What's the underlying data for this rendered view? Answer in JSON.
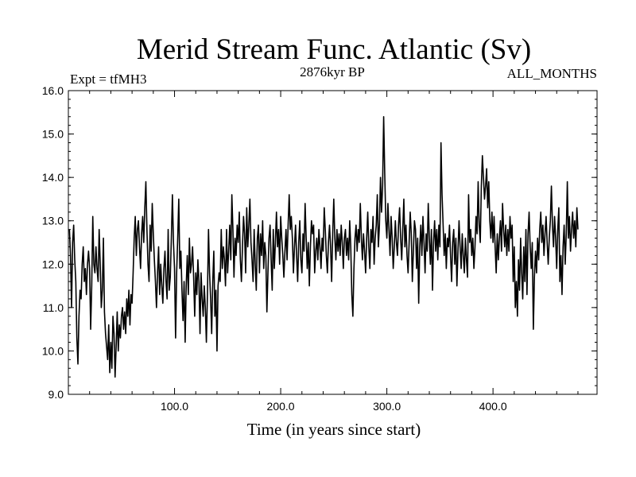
{
  "chart_data": {
    "type": "line",
    "title": "Merid Stream Func. Atlantic (Sv)",
    "subtitle_left": "Expt = tfMH3",
    "subtitle_center": "2876kyr BP",
    "subtitle_right": "ALL_MONTHS",
    "xlabel": "Time (in years since start)",
    "ylabel": "",
    "xlim": [
      0,
      498
    ],
    "ylim": [
      9.0,
      16.0
    ],
    "x_ticks": [
      100,
      200,
      300,
      400
    ],
    "x_tick_labels": [
      "100.0",
      "200.0",
      "300.0",
      "400.0"
    ],
    "y_ticks": [
      9,
      10,
      11,
      12,
      13,
      14,
      15,
      16
    ],
    "y_tick_labels": [
      "9.0",
      "10.0",
      "11.0",
      "12.0",
      "13.0",
      "14.0",
      "15.0",
      "16.0"
    ],
    "grid": false,
    "series": [
      {
        "name": "Merid Stream Func. Atlantic",
        "x_start": 1,
        "x_step": 1,
        "values": [
          12.8,
          12.2,
          11.0,
          12.5,
          12.9,
          12.1,
          11.6,
          10.3,
          9.7,
          10.8,
          11.4,
          11.2,
          12.0,
          12.4,
          11.6,
          11.9,
          11.3,
          12.0,
          12.3,
          11.9,
          10.5,
          11.5,
          13.1,
          12.0,
          11.8,
          12.4,
          11.9,
          11.6,
          12.8,
          12.0,
          11.0,
          11.4,
          12.6,
          10.9,
          10.4,
          10.1,
          9.8,
          10.6,
          9.5,
          10.2,
          9.6,
          10.8,
          10.4,
          9.4,
          10.1,
          10.9,
          10.0,
          10.6,
          10.3,
          10.8,
          11.0,
          10.5,
          10.9,
          10.4,
          11.2,
          10.8,
          11.4,
          10.6,
          11.3,
          11.1,
          11.8,
          12.6,
          13.1,
          12.2,
          12.8,
          13.0,
          12.4,
          11.9,
          12.7,
          13.1,
          12.5,
          13.3,
          13.9,
          12.8,
          12.0,
          11.6,
          12.9,
          12.3,
          13.4,
          12.7,
          12.1,
          11.6,
          11.0,
          11.8,
          12.4,
          11.3,
          12.0,
          11.5,
          11.1,
          11.9,
          12.3,
          11.6,
          11.2,
          12.8,
          11.4,
          11.7,
          12.6,
          13.6,
          12.5,
          11.9,
          10.3,
          11.8,
          12.6,
          13.5,
          11.9,
          12.3,
          11.4,
          10.7,
          11.6,
          10.2,
          11.5,
          12.2,
          11.3,
          12.6,
          11.8,
          12.0,
          12.4,
          11.7,
          10.8,
          11.8,
          11.3,
          12.1,
          11.6,
          10.4,
          11.8,
          11.2,
          10.8,
          11.5,
          11.0,
          10.2,
          11.3,
          12.8,
          11.8,
          11.2,
          10.4,
          11.6,
          12.3,
          10.8,
          11.4,
          10.0,
          11.5,
          11.8,
          11.6,
          12.8,
          11.9,
          12.4,
          12.1,
          11.5,
          12.8,
          11.8,
          12.3,
          12.9,
          12.1,
          13.6,
          12.8,
          11.7,
          12.6,
          12.2,
          12.9,
          12.5,
          13.2,
          12.1,
          11.6,
          12.4,
          13.1,
          12.7,
          11.8,
          13.3,
          12.4,
          12.9,
          13.5,
          12.5,
          12.1,
          11.6,
          12.8,
          12.0,
          11.4,
          12.6,
          12.9,
          11.8,
          12.7,
          12.2,
          13.0,
          11.9,
          12.5,
          12.2,
          10.9,
          11.8,
          12.6,
          12.9,
          12.1,
          11.4,
          12.8,
          11.9,
          12.5,
          13.2,
          12.4,
          12.8,
          12.0,
          13.1,
          12.6,
          12.2,
          11.7,
          12.3,
          12.8,
          12.1,
          12.9,
          13.6,
          12.8,
          13.1,
          12.6,
          11.8,
          12.4,
          12.9,
          12.2,
          11.6,
          12.5,
          13.0,
          12.1,
          11.8,
          12.7,
          12.3,
          13.4,
          12.6,
          11.9,
          12.5,
          11.5,
          12.4,
          13.0,
          12.7,
          12.9,
          11.8,
          12.3,
          12.6,
          12.1,
          12.8,
          12.4,
          11.9,
          12.6,
          12.3,
          13.3,
          12.8,
          12.2,
          11.8,
          12.5,
          12.9,
          12.4,
          11.6,
          12.7,
          13.5,
          12.6,
          12.1,
          12.8,
          12.3,
          12.7,
          12.2,
          12.9,
          12.5,
          11.9,
          12.6,
          12.8,
          12.2,
          12.6,
          12.1,
          13.0,
          12.4,
          11.3,
          10.8,
          11.9,
          12.6,
          12.9,
          12.3,
          12.8,
          12.5,
          13.4,
          12.6,
          12.1,
          12.7,
          12.3,
          11.8,
          12.6,
          13.2,
          12.4,
          11.9,
          12.8,
          12.5,
          13.1,
          12.0,
          12.6,
          12.9,
          13.6,
          12.4,
          12.9,
          14.0,
          13.2,
          13.8,
          15.4,
          14.1,
          13.0,
          12.6,
          13.4,
          12.8,
          12.2,
          13.1,
          12.6,
          11.9,
          12.4,
          13.0,
          12.5,
          12.2,
          12.9,
          13.3,
          12.6,
          12.1,
          12.8,
          13.5,
          12.4,
          12.9,
          12.2,
          11.8,
          12.5,
          13.2,
          12.7,
          11.6,
          12.3,
          13.0,
          12.8,
          11.9,
          12.6,
          11.1,
          12.4,
          12.9,
          12.2,
          13.1,
          12.5,
          11.8,
          12.7,
          12.3,
          13.4,
          12.6,
          12.0,
          12.8,
          11.4,
          12.5,
          13.0,
          12.3,
          12.8,
          12.1,
          12.9,
          12.4,
          14.8,
          13.6,
          12.9,
          12.2,
          12.7,
          11.9,
          12.6,
          12.4,
          12.9,
          12.2,
          11.6,
          12.5,
          12.8,
          12.0,
          12.6,
          11.5,
          12.3,
          13.0,
          12.4,
          11.9,
          12.7,
          12.2,
          11.8,
          12.6,
          12.1,
          11.7,
          13.6,
          12.5,
          12.8,
          12.2,
          12.6,
          11.9,
          12.4,
          13.1,
          12.7,
          13.9,
          12.9,
          12.5,
          13.8,
          14.5,
          14.0,
          13.5,
          13.8,
          14.2,
          13.3,
          13.9,
          13.0,
          12.6,
          13.2,
          12.5,
          13.1,
          12.4,
          11.8,
          12.7,
          12.1,
          12.6,
          13.0,
          12.3,
          13.4,
          12.8,
          12.4,
          12.9,
          12.2,
          12.8,
          12.3,
          13.1,
          12.6,
          12.9,
          11.6,
          12.4,
          11.0,
          11.6,
          10.8,
          12.1,
          11.4,
          12.6,
          11.8,
          11.2,
          12.4,
          11.6,
          12.8,
          11.3,
          12.7,
          13.2,
          12.4,
          11.9,
          12.5,
          10.5,
          11.7,
          12.3,
          11.8,
          12.6,
          12.1,
          12.8,
          13.2,
          12.5,
          12.9,
          12.2,
          12.7,
          13.1,
          12.5,
          12.0,
          12.6,
          13.0,
          13.8,
          12.9,
          12.4,
          13.1,
          12.6,
          11.9,
          12.8,
          13.3,
          11.6,
          12.2,
          11.3,
          12.4,
          12.9,
          12.0,
          12.7,
          13.9,
          12.6,
          13.1,
          12.3,
          12.8,
          13.2,
          12.6,
          13.0,
          12.4,
          13.3,
          12.8
        ]
      }
    ]
  }
}
